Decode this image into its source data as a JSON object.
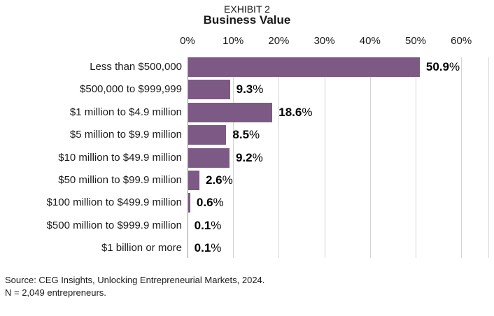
{
  "header": {
    "eyebrow": "EXHIBIT 2",
    "title": "Business Value"
  },
  "chart_data": {
    "type": "bar",
    "orientation": "horizontal",
    "title": "Business Value",
    "eyebrow": "EXHIBIT 2",
    "categories": [
      "Less than $500,000",
      "$500,000 to $999,999",
      "$1 million to $4.9 million",
      "$5 million to $9.9 million",
      "$10 million to $49.9 million",
      "$50 million to $99.9 million",
      "$100 million to $499.9 million",
      "$500 million to $999.9 million",
      "$1 billion or more"
    ],
    "values": [
      50.9,
      9.3,
      18.6,
      8.5,
      9.2,
      2.6,
      0.6,
      0.1,
      0.1
    ],
    "value_labels": [
      "50.9%",
      "9.3%",
      "18.6%",
      "8.5%",
      "9.2%",
      "2.6%",
      "0.6%",
      "0.1%",
      "0.1%"
    ],
    "x_ticks": [
      "0%",
      "10%",
      "20%",
      "30%",
      "40%",
      "50%",
      "60%"
    ],
    "xlim": [
      0,
      60
    ],
    "xlabel": "",
    "ylabel": "",
    "grid": "vertical",
    "legend": "none",
    "colors": {
      "bar": "#7D5A85",
      "gridline": "#D4D4D4",
      "axis_line": "#8F8F8F",
      "plot_border": "#D9D9D9",
      "text": "#1a1a1a"
    }
  },
  "footer": {
    "source_line1": "Source: CEG Insights, Unlocking Entrepreneurial Markets, 2024.",
    "source_line2": "N = 2,049 entrepreneurs."
  }
}
